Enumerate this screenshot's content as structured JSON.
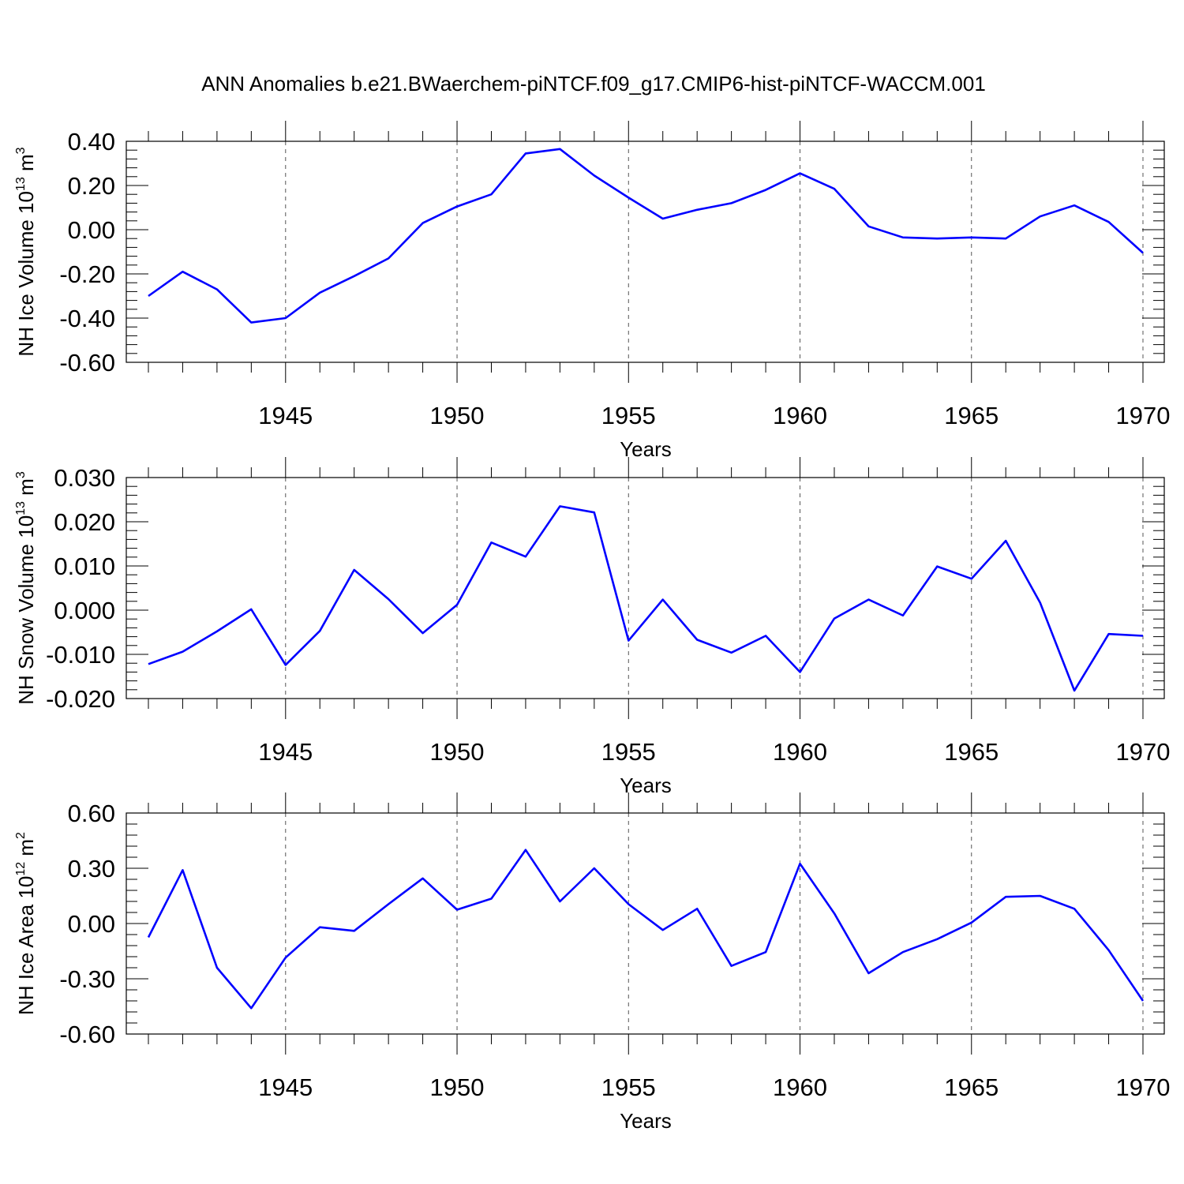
{
  "title": "ANN Anomalies b.e21.BWaerchem-piNTCF.f09_g17.CMIP6-hist-piNTCF-WACCM.001",
  "chart_data": [
    {
      "type": "line",
      "name": "ice-volume",
      "ylabel_main": "NH Ice Volume 10",
      "ylabel_exp": "13",
      "ylabel_unit": " m",
      "ylabel_unit_exp": "3",
      "xlabel": "Years",
      "xlim": [
        1941,
        1970
      ],
      "ylim": [
        -0.6,
        0.4
      ],
      "y_ticks": [
        -0.6,
        -0.4,
        -0.2,
        0.0,
        0.2,
        0.4
      ],
      "y_tick_labels": [
        "-0.60",
        "-0.40",
        "-0.20",
        "0.00",
        "0.20",
        "0.40"
      ],
      "x_ticks": [
        1945,
        1950,
        1955,
        1960,
        1965,
        1970
      ],
      "x_tick_labels": [
        "1945",
        "1950",
        "1955",
        "1960",
        "1965",
        "1970"
      ],
      "line_color": "#0000ff",
      "x": [
        1941,
        1942,
        1943,
        1944,
        1945,
        1946,
        1947,
        1948,
        1949,
        1950,
        1951,
        1952,
        1953,
        1954,
        1955,
        1956,
        1957,
        1958,
        1959,
        1960,
        1961,
        1962,
        1963,
        1964,
        1965,
        1966,
        1967,
        1968,
        1969,
        1970
      ],
      "values": [
        -0.3,
        -0.19,
        -0.27,
        -0.42,
        -0.4,
        -0.285,
        -0.21,
        -0.13,
        0.03,
        0.105,
        0.16,
        0.345,
        0.365,
        0.245,
        0.145,
        0.05,
        0.09,
        0.12,
        0.18,
        0.255,
        0.185,
        0.015,
        -0.035,
        -0.04,
        -0.035,
        -0.04,
        0.06,
        0.11,
        0.035,
        -0.105
      ]
    },
    {
      "type": "line",
      "name": "snow-volume",
      "ylabel_main": "NH Snow Volume 10",
      "ylabel_exp": "13",
      "ylabel_unit": " m",
      "ylabel_unit_exp": "3",
      "xlabel": "Years",
      "xlim": [
        1941,
        1970
      ],
      "ylim": [
        -0.02,
        0.03
      ],
      "y_ticks": [
        -0.02,
        -0.01,
        0.0,
        0.01,
        0.02,
        0.03
      ],
      "y_tick_labels": [
        "-0.020",
        "-0.010",
        "0.000",
        "0.010",
        "0.020",
        "0.030"
      ],
      "x_ticks": [
        1945,
        1950,
        1955,
        1960,
        1965,
        1970
      ],
      "x_tick_labels": [
        "1945",
        "1950",
        "1955",
        "1960",
        "1965",
        "1970"
      ],
      "line_color": "#0000ff",
      "x": [
        1941,
        1942,
        1943,
        1944,
        1945,
        1946,
        1947,
        1948,
        1949,
        1950,
        1951,
        1952,
        1953,
        1954,
        1955,
        1956,
        1957,
        1958,
        1959,
        1960,
        1961,
        1962,
        1963,
        1964,
        1965,
        1966,
        1967,
        1968,
        1969,
        1970
      ],
      "values": [
        -0.0122,
        -0.0094,
        -0.0048,
        0.0002,
        -0.0124,
        -0.0047,
        0.0091,
        0.0025,
        -0.0052,
        0.0012,
        0.0153,
        0.0121,
        0.0235,
        0.0221,
        -0.0069,
        0.0024,
        -0.0067,
        -0.0096,
        -0.0058,
        -0.014,
        -0.0019,
        0.0024,
        -0.0012,
        0.0099,
        0.0071,
        0.0157,
        0.0017,
        -0.0182,
        -0.0054,
        -0.0058
      ]
    },
    {
      "type": "line",
      "name": "ice-area",
      "ylabel_main": "NH Ice Area 10",
      "ylabel_exp": "12",
      "ylabel_unit": " m",
      "ylabel_unit_exp": "2",
      "xlabel": "Years",
      "xlim": [
        1941,
        1970
      ],
      "ylim": [
        -0.6,
        0.6
      ],
      "y_ticks": [
        -0.6,
        -0.3,
        0.0,
        0.3,
        0.6
      ],
      "y_tick_labels": [
        "-0.60",
        "-0.30",
        "0.00",
        "0.30",
        "0.60"
      ],
      "x_ticks": [
        1945,
        1950,
        1955,
        1960,
        1965,
        1970
      ],
      "x_tick_labels": [
        "1945",
        "1950",
        "1955",
        "1960",
        "1965",
        "1970"
      ],
      "line_color": "#0000ff",
      "x": [
        1941,
        1942,
        1943,
        1944,
        1945,
        1946,
        1947,
        1948,
        1949,
        1950,
        1951,
        1952,
        1953,
        1954,
        1955,
        1956,
        1957,
        1958,
        1959,
        1960,
        1961,
        1962,
        1963,
        1964,
        1965,
        1966,
        1967,
        1968,
        1969,
        1970
      ],
      "values": [
        -0.075,
        0.29,
        -0.24,
        -0.46,
        -0.185,
        -0.02,
        -0.04,
        0.105,
        0.245,
        0.075,
        0.135,
        0.4,
        0.12,
        0.3,
        0.105,
        -0.035,
        0.08,
        -0.23,
        -0.155,
        0.325,
        0.055,
        -0.27,
        -0.155,
        -0.085,
        0.005,
        0.145,
        0.15,
        0.08,
        -0.145,
        -0.42
      ]
    }
  ]
}
